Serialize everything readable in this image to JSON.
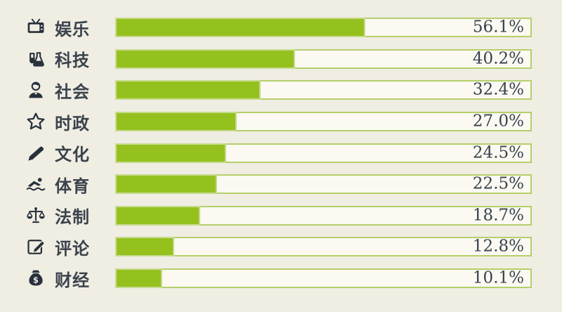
{
  "page": {
    "background_color": "#f0ede3",
    "text_color": "#39434d",
    "icon_color": "#27313b"
  },
  "chart_data": {
    "type": "bar",
    "orientation": "horizontal",
    "title": "",
    "xlabel": "",
    "ylabel": "",
    "axis_max": 94,
    "grid": false,
    "legend": false,
    "bar_color": "#95c11f",
    "bar_border_color": "#c6db8e",
    "track_color": "#fbf9f2",
    "track_border_color": "#b4cf6a",
    "categories": [
      "娱乐",
      "科技",
      "社会",
      "时政",
      "文化",
      "体育",
      "法制",
      "评论",
      "财经"
    ],
    "values": [
      56.1,
      40.2,
      32.4,
      27.0,
      24.5,
      22.5,
      18.7,
      12.8,
      10.1
    ],
    "rows": [
      {
        "icon": "tv-icon",
        "label": "娱乐",
        "value": 56.1,
        "display": "56.1%"
      },
      {
        "icon": "flask-icon",
        "label": "科技",
        "value": 40.2,
        "display": "40.2%"
      },
      {
        "icon": "person-icon",
        "label": "社会",
        "value": 32.4,
        "display": "32.4%"
      },
      {
        "icon": "star-icon",
        "label": "时政",
        "value": 27.0,
        "display": "27.0%"
      },
      {
        "icon": "pencil-icon",
        "label": "文化",
        "value": 24.5,
        "display": "24.5%"
      },
      {
        "icon": "swimmer-icon",
        "label": "体育",
        "value": 22.5,
        "display": "22.5%"
      },
      {
        "icon": "scales-icon",
        "label": "法制",
        "value": 18.7,
        "display": "18.7%"
      },
      {
        "icon": "compose-icon",
        "label": "评论",
        "value": 12.8,
        "display": "12.8%"
      },
      {
        "icon": "moneybag-icon",
        "label": "财经",
        "value": 10.1,
        "display": "10.1%"
      }
    ]
  }
}
